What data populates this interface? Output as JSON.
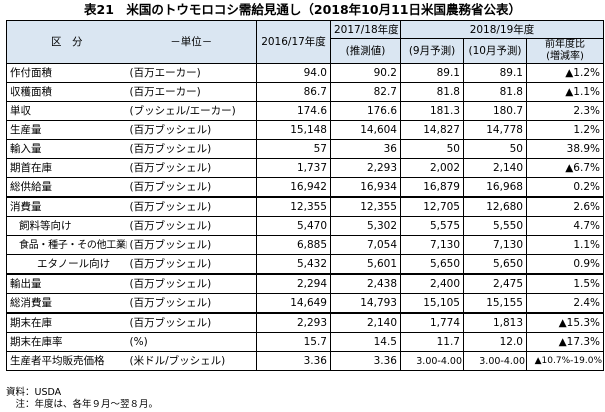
{
  "title": "表21　米国のトウモロコシ需給見通し（2018年10月11日米国農務省公表）",
  "header": {
    "category": "区　分",
    "unit_label": "－単位－",
    "col_2016": "2016/17年度",
    "group_2017": "2017/18年度",
    "group_2018": "2018/19年度",
    "col_2017_est": "(推測値)",
    "col_2018_sep": "(9月予測)",
    "col_2018_oct": "(10月予測)",
    "col_change_line1": "前年度比",
    "col_change_line2": "(増減率)"
  },
  "rows": [
    {
      "label": "作付面積",
      "unit": "(百万エーカー)",
      "v2016": "94.0",
      "v2017": "90.2",
      "sep": "89.1",
      "oct": "89.1",
      "change": "▲1.2%"
    },
    {
      "label": "収穫面積",
      "unit": "(百万エーカー)",
      "v2016": "86.7",
      "v2017": "82.7",
      "sep": "81.8",
      "oct": "81.8",
      "change": "▲1.1%"
    },
    {
      "label": "単収",
      "unit": "(ブッシェル/エーカー)",
      "v2016": "174.6",
      "v2017": "176.6",
      "sep": "181.3",
      "oct": "180.7",
      "change": "2.3%"
    },
    {
      "label": "生産量",
      "unit": "(百万ブッシェル)",
      "v2016": "15,148",
      "v2017": "14,604",
      "sep": "14,827",
      "oct": "14,778",
      "change": "1.2%"
    },
    {
      "label": "輸入量",
      "unit": "(百万ブッシェル)",
      "v2016": "57",
      "v2017": "36",
      "sep": "50",
      "oct": "50",
      "change": "38.9%"
    },
    {
      "label": "期首在庫",
      "unit": "(百万ブッシェル)",
      "v2016": "1,737",
      "v2017": "2,293",
      "sep": "2,002",
      "oct": "2,140",
      "change": "▲6.7%"
    },
    {
      "label": "総供給量",
      "unit": "(百万ブッシェル)",
      "v2016": "16,942",
      "v2017": "16,934",
      "sep": "16,879",
      "oct": "16,968",
      "change": "0.2%"
    },
    {
      "label": "消費量",
      "unit": "(百万ブッシェル)",
      "v2016": "12,355",
      "v2017": "12,355",
      "sep": "12,705",
      "oct": "12,680",
      "change": "2.6%"
    },
    {
      "label": "飼料等向け",
      "unit": "(百万ブッシェル)",
      "v2016": "5,470",
      "v2017": "5,302",
      "sep": "5,575",
      "oct": "5,550",
      "change": "4.7%"
    },
    {
      "label": "食品・種子・その他工業向け",
      "unit": "(百万ブッシェル)",
      "v2016": "6,885",
      "v2017": "7,054",
      "sep": "7,130",
      "oct": "7,130",
      "change": "1.1%"
    },
    {
      "label": "エタノール向け",
      "unit": "(百万ブッシェル)",
      "v2016": "5,432",
      "v2017": "5,601",
      "sep": "5,650",
      "oct": "5,650",
      "change": "0.9%"
    },
    {
      "label": "輸出量",
      "unit": "(百万ブッシェル)",
      "v2016": "2,294",
      "v2017": "2,438",
      "sep": "2,400",
      "oct": "2,475",
      "change": "1.5%"
    },
    {
      "label": "総消費量",
      "unit": "(百万ブッシェル)",
      "v2016": "14,649",
      "v2017": "14,793",
      "sep": "15,105",
      "oct": "15,155",
      "change": "2.4%"
    },
    {
      "label": "期末在庫",
      "unit": "(百万ブッシェル)",
      "v2016": "2,293",
      "v2017": "2,140",
      "sep": "1,774",
      "oct": "1,813",
      "change": "▲15.3%"
    },
    {
      "label": "期末在庫率",
      "unit": "(%)",
      "v2016": "15.7",
      "v2017": "14.5",
      "sep": "11.7",
      "oct": "12.0",
      "change": "▲17.3%"
    },
    {
      "label": "生産者平均販売価格",
      "unit": "(米ドル/ブッシェル)",
      "v2016": "3.36",
      "v2017": "3.36",
      "sep": "3.00-4.00",
      "oct": "3.00-4.00",
      "change": "▲10.7%-19.0%"
    }
  ],
  "footnotes": {
    "source": "資料：USDA",
    "note": "　注：年度は、各年９月～翌８月。"
  }
}
